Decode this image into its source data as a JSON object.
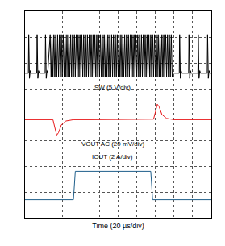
{
  "chart_data": {
    "type": "line",
    "x_label": "Time (20 µs/div)",
    "xlim": [
      0,
      10
    ],
    "xticks": [
      0,
      1,
      2,
      3,
      4,
      5,
      6,
      7,
      8,
      9,
      10
    ],
    "ylim": [
      0,
      8
    ],
    "yticks": [
      0,
      1,
      2,
      3,
      4,
      5,
      6,
      7,
      8
    ],
    "grid": true,
    "tick_labels": false,
    "series": [
      {
        "name": "SW (5 V/div)",
        "color": "#000000",
        "x": [
          0,
          0.18,
          0.2,
          0.24,
          0.28,
          0.32,
          0.63,
          0.65,
          0.69,
          0.73,
          0.77,
          1.08,
          1.1,
          1.14,
          1.18,
          1.22,
          1.35,
          1.4,
          1.45,
          1.5,
          1.55,
          1.6,
          1.65,
          1.7,
          1.75,
          1.8,
          1.85,
          1.9,
          1.95,
          2,
          2.05,
          2.1,
          2.15,
          2.2,
          2.25,
          2.3,
          2.35,
          2.4,
          2.45,
          2.5,
          2.55,
          2.6,
          2.65,
          2.7,
          2.75,
          2.8,
          2.85,
          2.9,
          2.95,
          3,
          3.05,
          3.1,
          3.15,
          3.2,
          3.25,
          3.3,
          3.35,
          3.4,
          3.45,
          3.5,
          3.55,
          3.6,
          3.65,
          3.7,
          3.75,
          3.8,
          3.85,
          3.9,
          3.95,
          4,
          4.05,
          4.1,
          4.15,
          4.2,
          4.25,
          4.3,
          4.35,
          4.4,
          4.45,
          4.5,
          4.55,
          4.6,
          4.65,
          4.7,
          4.75,
          4.8,
          4.85,
          4.9,
          4.95,
          5,
          5.05,
          5.1,
          5.15,
          5.2,
          5.25,
          5.3,
          5.35,
          5.4,
          5.45,
          5.5,
          5.55,
          5.6,
          5.65,
          5.7,
          5.75,
          5.8,
          5.85,
          5.9,
          5.95,
          6,
          6.05,
          6.1,
          6.15,
          6.2,
          6.25,
          6.3,
          6.35,
          6.4,
          6.45,
          6.5,
          6.55,
          6.6,
          6.65,
          6.7,
          6.75,
          6.8,
          6.85,
          6.9,
          6.95,
          7,
          7.05,
          7.1,
          7.15,
          7.2,
          7.25,
          7.3,
          7.35,
          7.4,
          7.45,
          7.5,
          7.55,
          7.6,
          7.65,
          7.7,
          7.75,
          7.8,
          7.85,
          7.9,
          7.95,
          8.28,
          8.3,
          8.34,
          8.38,
          8.42,
          8.78,
          8.8,
          8.84,
          8.88,
          8.92,
          9.28,
          9.3,
          9.34,
          9.38,
          9.42,
          9.78,
          9.8,
          9.84,
          9.88,
          9.92,
          10
        ],
        "values": [
          5.6,
          5.6,
          7.1,
          5.4,
          5.7,
          5.6,
          5.6,
          7.1,
          5.4,
          5.7,
          5.6,
          5.6,
          7.1,
          5.4,
          5.7,
          5.6,
          7.1,
          5.45,
          7.1,
          5.45,
          7.1,
          5.45,
          7.1,
          5.45,
          7.1,
          5.45,
          7.1,
          5.45,
          7.1,
          5.45,
          7.1,
          5.45,
          7.1,
          5.45,
          7.1,
          5.45,
          7.1,
          5.45,
          7.1,
          5.45,
          7.1,
          5.45,
          7.1,
          5.45,
          7.1,
          5.45,
          7.1,
          5.45,
          7.1,
          5.45,
          7.1,
          5.45,
          7.1,
          5.45,
          7.1,
          5.45,
          7.1,
          5.45,
          7.1,
          5.45,
          7.1,
          5.45,
          7.1,
          5.45,
          7.1,
          5.45,
          7.1,
          5.45,
          7.1,
          5.45,
          7.1,
          5.45,
          7.1,
          5.45,
          7.1,
          5.45,
          7.1,
          5.45,
          7.1,
          5.45,
          7.1,
          5.45,
          7.1,
          5.45,
          7.1,
          5.45,
          7.1,
          5.45,
          7.1,
          5.45,
          7.1,
          5.45,
          7.1,
          5.45,
          7.1,
          5.45,
          7.1,
          5.45,
          7.1,
          5.45,
          7.1,
          5.45,
          7.1,
          5.45,
          7.1,
          5.45,
          7.1,
          5.45,
          7.1,
          5.45,
          7.1,
          5.45,
          7.1,
          5.45,
          7.1,
          5.45,
          7.1,
          5.45,
          7.1,
          5.45,
          7.1,
          5.45,
          7.1,
          5.45,
          7.1,
          5.45,
          7.1,
          5.45,
          7.1,
          5.45,
          7.1,
          5.45,
          7.1,
          5.45,
          7.1,
          5.45,
          7.1,
          5.45,
          7.1,
          5.45,
          7.1,
          5.45,
          7.1,
          5.45,
          7.1,
          5.45,
          7.1,
          5.45,
          5.6,
          5.6,
          7.1,
          5.4,
          5.7,
          5.6,
          5.6,
          7.1,
          5.4,
          5.7,
          5.6,
          5.6,
          7.1,
          5.4,
          5.7,
          5.6,
          5.6,
          7.1,
          5.4,
          5.7,
          5.6,
          5.6
        ]
      },
      {
        "name": "VOUT AC (20 mV/div)",
        "color": "#e8191b",
        "x": [
          0,
          1.5,
          1.6,
          1.7,
          1.8,
          1.95,
          2.2,
          2.6,
          3.5,
          5,
          6.9,
          7.0,
          7.1,
          7.2,
          7.35,
          7.6,
          8.0,
          9,
          10
        ],
        "values": [
          3.8,
          3.8,
          3.5,
          3.2,
          3.3,
          3.6,
          3.75,
          3.8,
          3.8,
          3.8,
          3.82,
          4.1,
          4.4,
          4.3,
          4.0,
          3.85,
          3.8,
          3.8,
          3.8
        ]
      },
      {
        "name": "IOUT (2 A/div)",
        "color": "#1f5f8b",
        "x": [
          0,
          2.6,
          2.7,
          6.75,
          6.85,
          10
        ],
        "values": [
          0.7,
          0.7,
          1.8,
          1.8,
          0.7,
          0.7
        ]
      }
    ]
  }
}
